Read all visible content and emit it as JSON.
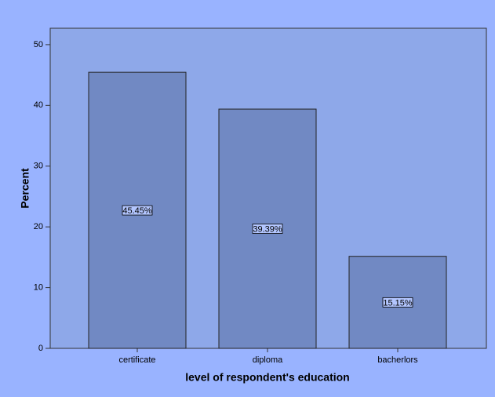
{
  "chart_data": {
    "type": "bar",
    "x_label": "level of respondent's education",
    "y_label": "Percent",
    "categories": [
      "certificate",
      "diploma",
      "bacherlors"
    ],
    "values": [
      45.45,
      39.39,
      15.15
    ],
    "value_labels": [
      "45.45%",
      "39.39%",
      "15.15%"
    ],
    "color": "#7189c3",
    "ylim": [
      0,
      52.7
    ],
    "yticks": [
      0,
      10,
      20,
      30,
      40,
      50
    ],
    "grid": false
  }
}
